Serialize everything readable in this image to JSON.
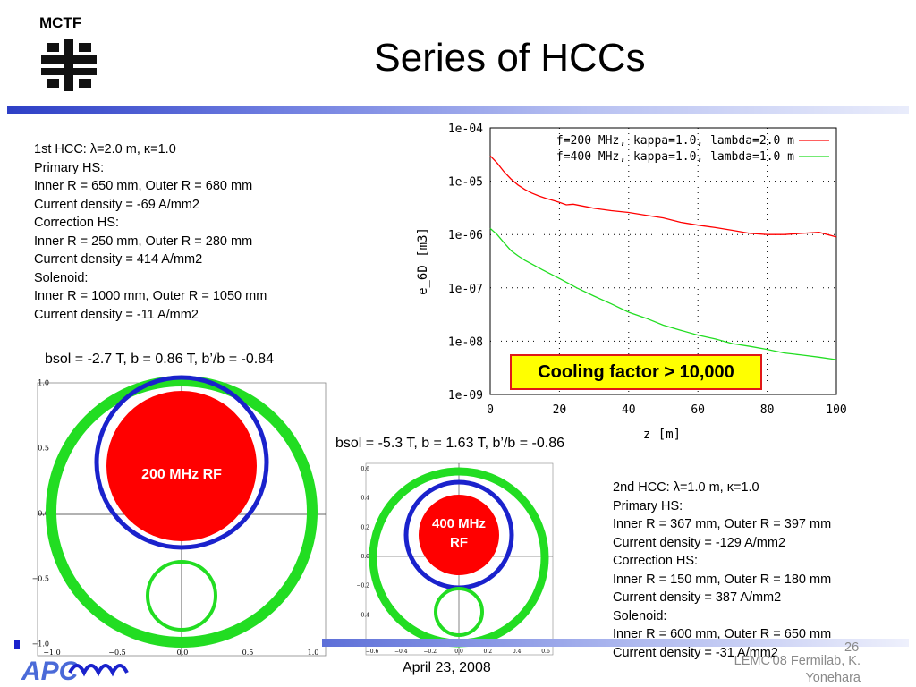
{
  "logo": {
    "text": "MCTF"
  },
  "title": "Series of HCCs",
  "hcc1": {
    "lines": [
      "1st HCC: λ=2.0 m, κ=1.0",
      "Primary HS:",
      "Inner R = 650 mm, Outer R = 680 mm",
      "Current density = -69 A/mm2",
      "Correction HS:",
      "Inner R = 250 mm, Outer R = 280 mm",
      "Current density = 414 A/mm2",
      "Solenoid:",
      "Inner R = 1000 mm, Outer R = 1050 mm",
      "Current density = -11 A/mm2"
    ],
    "bsol": "bsol = -2.7 T, b = 0.86 T, b’/b = -0.84",
    "rf_label": "200 MHz RF"
  },
  "hcc2": {
    "lines": [
      "2nd HCC: λ=1.0 m, κ=1.0",
      "Primary HS:",
      "Inner R = 367 mm, Outer R = 397 mm",
      "Current density = -129 A/mm2",
      "Correction HS:",
      "Inner R = 150 mm, Outer R = 180 mm",
      "Current density = 387 A/mm2",
      "Solenoid:",
      "Inner R = 600 mm, Outer R = 650 mm",
      "Current density = -31 A/mm2"
    ],
    "bsol": "bsol = -5.3 T, b = 1.63 T, b’/b = -0.86",
    "rf_label_line1": "400 MHz",
    "rf_label_line2": "RF"
  },
  "cooling": {
    "text": "Cooling factor > 10,000"
  },
  "footer": {
    "date": "April 23, 2008",
    "conference": "LEMC'08 Fermilab, K. Yonehara",
    "page": "26"
  },
  "colors": {
    "red": "#ff0000",
    "green": "#22dd22",
    "blue": "#1a22cc"
  },
  "chart_data": [
    {
      "type": "line",
      "xlabel": "z [m]",
      "ylabel": "e_6D [m3]",
      "log_y": true,
      "xlim": [
        0,
        100
      ],
      "ylim": [
        1e-09,
        0.0001
      ],
      "x_ticks": [
        "0",
        "20",
        "40",
        "60",
        "80",
        "100"
      ],
      "y_ticks": [
        "1e-04",
        "1e-05",
        "1e-06",
        "1e-07",
        "1e-08",
        "1e-09"
      ],
      "grid": true,
      "legend_position": "top-right",
      "series": [
        {
          "name": "f=200 MHz, kappa=1.0, lambda=2.0 m",
          "color": "#ff0000",
          "x": [
            0,
            2,
            4,
            6,
            8,
            10,
            12,
            14,
            16,
            18,
            20,
            22,
            24,
            26,
            28,
            30,
            35,
            40,
            45,
            50,
            55,
            60,
            65,
            70,
            75,
            80,
            85,
            90,
            95,
            100
          ],
          "y": [
            3e-05,
            2.2e-05,
            1.5e-05,
            1.1e-05,
            8.5e-06,
            7e-06,
            6e-06,
            5.3e-06,
            4.8e-06,
            4.4e-06,
            4e-06,
            3.6e-06,
            3.7e-06,
            3.5e-06,
            3.3e-06,
            3.1e-06,
            2.8e-06,
            2.6e-06,
            2.3e-06,
            2.05e-06,
            1.7e-06,
            1.5e-06,
            1.35e-06,
            1.2e-06,
            1.05e-06,
            1e-06,
            1e-06,
            1.05e-06,
            1.1e-06,
            9e-07
          ]
        },
        {
          "name": "f=400 MHz, kappa=1.0, lambda=1.0 m",
          "color": "#22dd22",
          "x": [
            0,
            2,
            4,
            6,
            8,
            10,
            12,
            15,
            20,
            25,
            30,
            35,
            40,
            45,
            50,
            55,
            60,
            65,
            70,
            75,
            80,
            85,
            90,
            95,
            100
          ],
          "y": [
            1.3e-06,
            1e-06,
            7e-07,
            5e-07,
            4e-07,
            3.3e-07,
            2.8e-07,
            2.2e-07,
            1.5e-07,
            1e-07,
            7e-08,
            5e-08,
            3.5e-08,
            2.7e-08,
            2e-08,
            1.6e-08,
            1.3e-08,
            1.1e-08,
            9e-09,
            8e-09,
            7e-09,
            6e-09,
            5.5e-09,
            5e-09,
            4.5e-09
          ]
        }
      ]
    },
    {
      "type": "scatter",
      "xlim": [
        -1.0,
        1.0
      ],
      "ylim": [
        -1.0,
        1.0
      ],
      "x_ticks": [
        "−1.0",
        "−0.5",
        "0.0",
        "0.5",
        "1.0"
      ],
      "y_ticks": [
        "1.0",
        "0.5",
        "0.0",
        "−0.5",
        "−1.0"
      ],
      "grid": false
    },
    {
      "type": "scatter",
      "xlim": [
        -0.6,
        0.6
      ],
      "ylim": [
        -0.6,
        0.6
      ],
      "x_ticks": [
        "−0.6",
        "−0.4",
        "−0.2",
        "0.0",
        "0.2",
        "0.4",
        "0.6"
      ],
      "y_ticks": [
        "0.6",
        "0.4",
        "0.2",
        "0.0",
        "−0.2",
        "−0.4",
        "−0.6"
      ],
      "grid": false
    }
  ]
}
